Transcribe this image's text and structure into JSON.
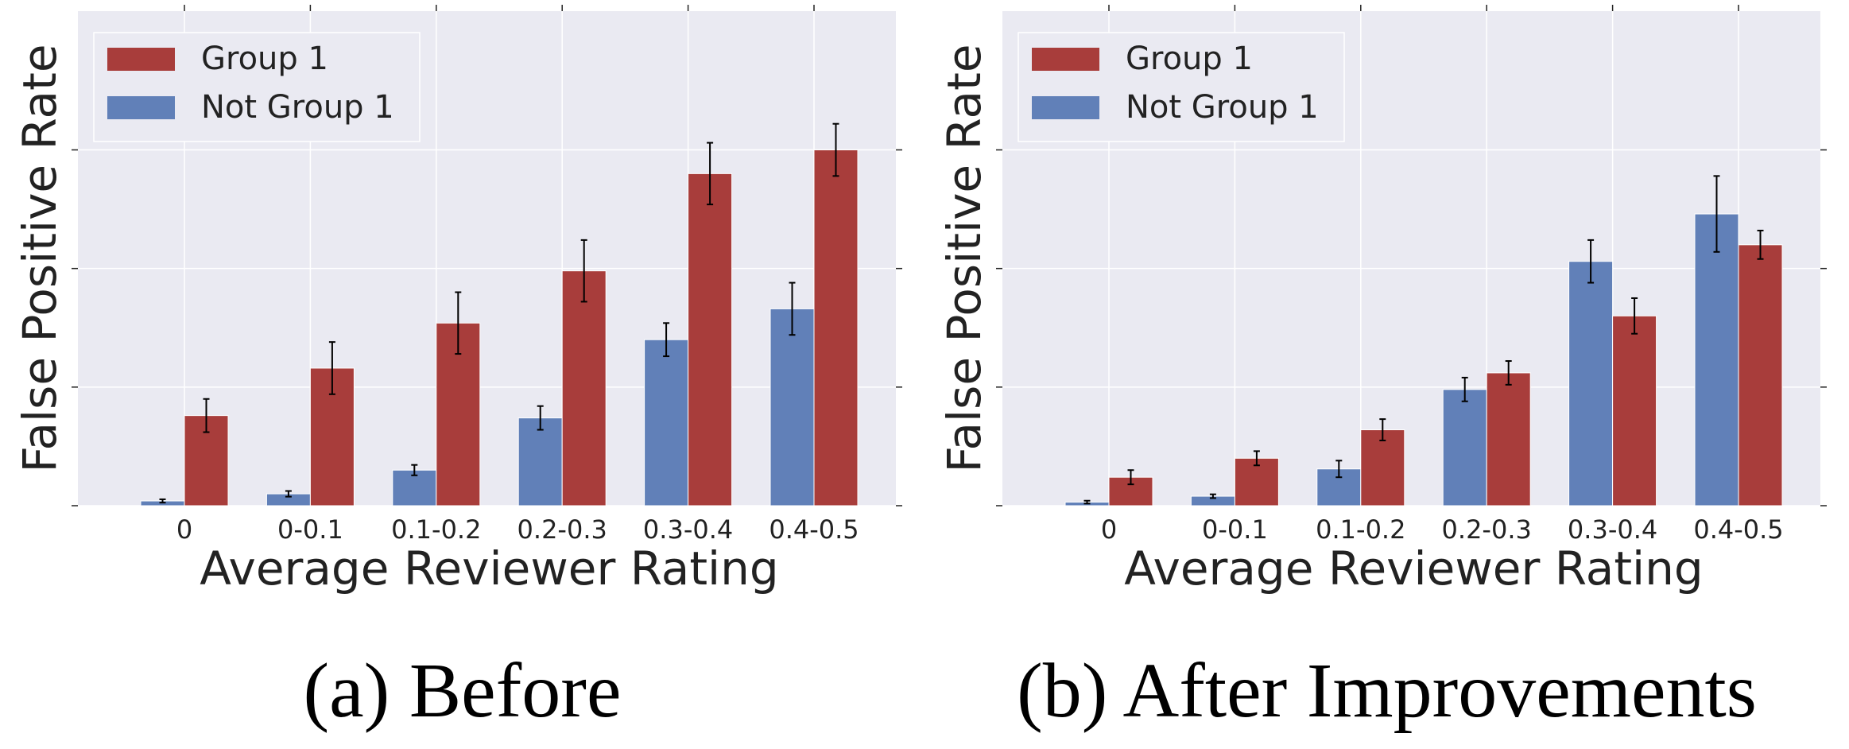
{
  "colors": {
    "group1": "#a83d3b",
    "not_group1": "#6180b8",
    "plot_bg": "#eaeaf2",
    "grid": "#ffffff",
    "text": "#222222",
    "error_bar": "#000000"
  },
  "chart_data": [
    {
      "type": "bar",
      "caption": "(a) Before",
      "xlabel": "Average Reviewer Rating",
      "ylabel": "False Positive Rate",
      "categories": [
        "0",
        "0-0.1",
        "0.1-0.2",
        "0.2-0.3",
        "0.3-0.4",
        "0.4-0.5"
      ],
      "ylim": [
        0,
        1.5
      ],
      "y_ticks": [
        0,
        0.5,
        1.0,
        1.5
      ],
      "y_tick_labels_visible": false,
      "grid": true,
      "legend_position": "top-left",
      "series": [
        {
          "name": "Group 1",
          "color_key": "group1",
          "values": [
            0.38,
            0.58,
            0.77,
            0.99,
            1.4,
            1.5
          ],
          "errors": [
            0.07,
            0.11,
            0.13,
            0.13,
            0.13,
            0.11
          ]
        },
        {
          "name": "Not Group 1",
          "color_key": "not_group1",
          "values": [
            0.02,
            0.05,
            0.15,
            0.37,
            0.7,
            0.83
          ],
          "errors": [
            0.007,
            0.012,
            0.022,
            0.05,
            0.07,
            0.11
          ]
        }
      ]
    },
    {
      "type": "bar",
      "caption": "(b) After Improvements",
      "xlabel": "Average Reviewer Rating",
      "ylabel": "False Positive Rate",
      "categories": [
        "0",
        "0-0.1",
        "0.1-0.2",
        "0.2-0.3",
        "0.3-0.4",
        "0.4-0.5"
      ],
      "ylim": [
        0,
        1.5
      ],
      "y_ticks": [
        0,
        0.5,
        1.0,
        1.5
      ],
      "y_tick_labels_visible": false,
      "grid": true,
      "legend_position": "top-left",
      "series": [
        {
          "name": "Group 1",
          "color_key": "group1",
          "values": [
            0.12,
            0.2,
            0.32,
            0.56,
            0.8,
            1.1
          ],
          "errors": [
            0.03,
            0.03,
            0.045,
            0.05,
            0.075,
            0.06
          ]
        },
        {
          "name": "Not Group 1",
          "color_key": "not_group1",
          "values": [
            0.015,
            0.04,
            0.155,
            0.49,
            1.03,
            1.23
          ],
          "errors": [
            0.006,
            0.008,
            0.035,
            0.05,
            0.09,
            0.16
          ]
        }
      ]
    }
  ]
}
